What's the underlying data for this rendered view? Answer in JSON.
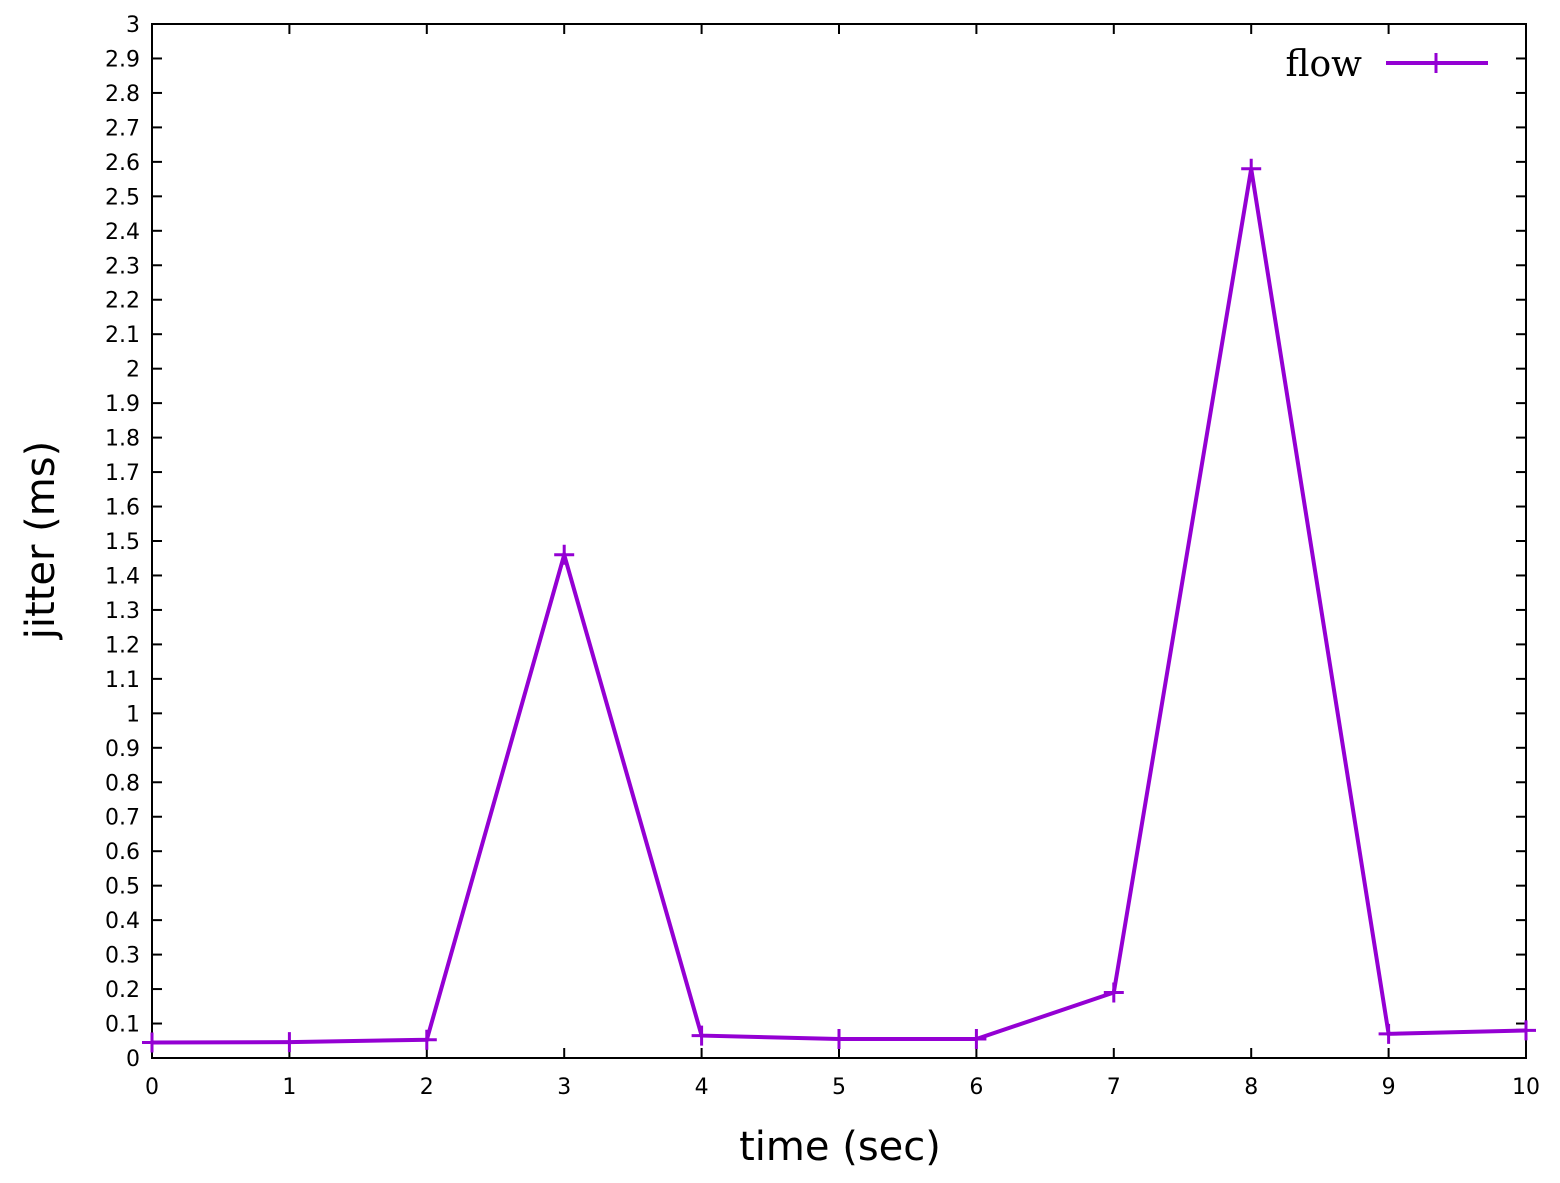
{
  "chart_data": {
    "type": "line",
    "title": "",
    "xlabel": "time (sec)",
    "ylabel": "jitter (ms)",
    "xlim": [
      0,
      10
    ],
    "ylim": [
      0,
      3
    ],
    "x_ticks": [
      0,
      1,
      2,
      3,
      4,
      5,
      6,
      7,
      8,
      9,
      10
    ],
    "y_ticks": [
      0,
      0.1,
      0.2,
      0.3,
      0.4,
      0.5,
      0.6,
      0.7,
      0.8,
      0.9,
      1,
      1.1,
      1.2,
      1.3,
      1.4,
      1.5,
      1.6,
      1.7,
      1.8,
      1.9,
      2,
      2.1,
      2.2,
      2.3,
      2.4,
      2.5,
      2.6,
      2.7,
      2.8,
      2.9,
      3
    ],
    "grid": false,
    "legend_position": "top-right",
    "series": [
      {
        "name": "flow",
        "color": "#9400d3",
        "marker": "plus",
        "x": [
          0,
          1,
          2,
          3,
          4,
          5,
          6,
          7,
          8,
          9,
          10
        ],
        "y": [
          0.045,
          0.046,
          0.053,
          1.46,
          0.065,
          0.055,
          0.055,
          0.19,
          2.58,
          0.07,
          0.08
        ]
      }
    ]
  }
}
